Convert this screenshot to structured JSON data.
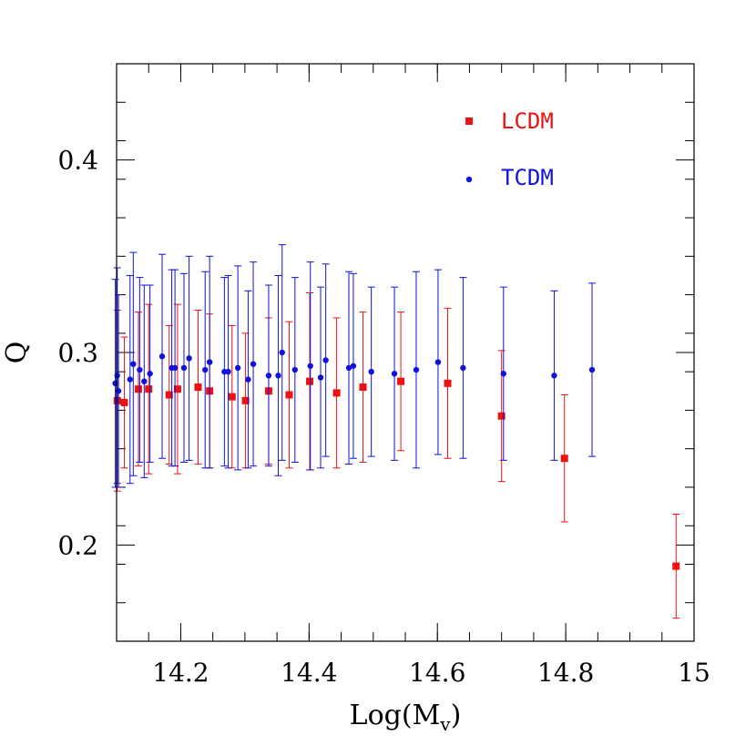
{
  "chart_data": {
    "type": "scatter",
    "xlabel": "Log(M",
    "xlabel_sub": "v",
    "xlabel_close": ")",
    "ylabel": "Q",
    "xlim": [
      14.1,
      15.0
    ],
    "ylim": [
      0.15,
      0.45
    ],
    "x_ticks": [
      14.2,
      14.4,
      14.6,
      14.8,
      15.0
    ],
    "x_tick_labels": [
      "14.2",
      "14.4",
      "14.6",
      "14.8",
      "15"
    ],
    "y_ticks": [
      0.2,
      0.3,
      0.4
    ],
    "y_tick_labels": [
      "0.2",
      "0.3",
      "0.4"
    ],
    "x_minor_step": 0.05,
    "y_minor_step": 0.02,
    "grid": false,
    "legend_position": "top-right",
    "series": [
      {
        "name": "LCDM",
        "color": "#ee1111",
        "marker": "square",
        "points": [
          {
            "x": 14.101,
            "y": 0.275,
            "err": 0.047
          },
          {
            "x": 14.112,
            "y": 0.274,
            "err": 0.034
          },
          {
            "x": 14.134,
            "y": 0.281,
            "err": 0.04
          },
          {
            "x": 14.15,
            "y": 0.281,
            "err": 0.044
          },
          {
            "x": 14.182,
            "y": 0.278,
            "err": 0.036
          },
          {
            "x": 14.195,
            "y": 0.281,
            "err": 0.044
          },
          {
            "x": 14.227,
            "y": 0.282,
            "err": 0.04
          },
          {
            "x": 14.245,
            "y": 0.28,
            "err": 0.04
          },
          {
            "x": 14.28,
            "y": 0.277,
            "err": 0.037
          },
          {
            "x": 14.301,
            "y": 0.275,
            "err": 0.035
          },
          {
            "x": 14.337,
            "y": 0.28,
            "err": 0.038
          },
          {
            "x": 14.369,
            "y": 0.278,
            "err": 0.038
          },
          {
            "x": 14.401,
            "y": 0.285,
            "err": 0.046
          },
          {
            "x": 14.443,
            "y": 0.279,
            "err": 0.039
          },
          {
            "x": 14.484,
            "y": 0.282,
            "err": 0.039
          },
          {
            "x": 14.543,
            "y": 0.285,
            "err": 0.036
          },
          {
            "x": 14.616,
            "y": 0.284,
            "err": 0.039
          },
          {
            "x": 14.7,
            "y": 0.267,
            "err": 0.034
          },
          {
            "x": 14.798,
            "y": 0.245,
            "err": 0.033
          },
          {
            "x": 14.972,
            "y": 0.189,
            "err": 0.027
          }
        ]
      },
      {
        "name": "TCDM",
        "color": "#1111dd",
        "marker": "circle",
        "points": [
          {
            "x": 14.098,
            "y": 0.284,
            "err": 0.054
          },
          {
            "x": 14.101,
            "y": 0.288,
            "err": 0.056
          },
          {
            "x": 14.103,
            "y": 0.28,
            "err": 0.05
          },
          {
            "x": 14.121,
            "y": 0.286,
            "err": 0.054
          },
          {
            "x": 14.126,
            "y": 0.294,
            "err": 0.058
          },
          {
            "x": 14.136,
            "y": 0.291,
            "err": 0.048
          },
          {
            "x": 14.143,
            "y": 0.285,
            "err": 0.05
          },
          {
            "x": 14.152,
            "y": 0.289,
            "err": 0.046
          },
          {
            "x": 14.171,
            "y": 0.298,
            "err": 0.053
          },
          {
            "x": 14.186,
            "y": 0.292,
            "err": 0.051
          },
          {
            "x": 14.191,
            "y": 0.292,
            "err": 0.051
          },
          {
            "x": 14.205,
            "y": 0.292,
            "err": 0.049
          },
          {
            "x": 14.213,
            "y": 0.297,
            "err": 0.053
          },
          {
            "x": 14.238,
            "y": 0.291,
            "err": 0.051
          },
          {
            "x": 14.245,
            "y": 0.295,
            "err": 0.055
          },
          {
            "x": 14.268,
            "y": 0.29,
            "err": 0.049
          },
          {
            "x": 14.274,
            "y": 0.29,
            "err": 0.05
          },
          {
            "x": 14.289,
            "y": 0.292,
            "err": 0.053
          },
          {
            "x": 14.305,
            "y": 0.286,
            "err": 0.046
          },
          {
            "x": 14.313,
            "y": 0.294,
            "err": 0.053
          },
          {
            "x": 14.337,
            "y": 0.288,
            "err": 0.047
          },
          {
            "x": 14.352,
            "y": 0.288,
            "err": 0.052
          },
          {
            "x": 14.358,
            "y": 0.3,
            "err": 0.056
          },
          {
            "x": 14.378,
            "y": 0.291,
            "err": 0.048
          },
          {
            "x": 14.402,
            "y": 0.293,
            "err": 0.054
          },
          {
            "x": 14.418,
            "y": 0.287,
            "err": 0.047
          },
          {
            "x": 14.426,
            "y": 0.296,
            "err": 0.05
          },
          {
            "x": 14.462,
            "y": 0.292,
            "err": 0.05
          },
          {
            "x": 14.469,
            "y": 0.293,
            "err": 0.048
          },
          {
            "x": 14.497,
            "y": 0.29,
            "err": 0.044
          },
          {
            "x": 14.533,
            "y": 0.289,
            "err": 0.045
          },
          {
            "x": 14.567,
            "y": 0.291,
            "err": 0.051
          },
          {
            "x": 14.601,
            "y": 0.295,
            "err": 0.048
          },
          {
            "x": 14.64,
            "y": 0.292,
            "err": 0.047
          },
          {
            "x": 14.703,
            "y": 0.289,
            "err": 0.045
          },
          {
            "x": 14.782,
            "y": 0.288,
            "err": 0.044
          },
          {
            "x": 14.841,
            "y": 0.291,
            "err": 0.045
          }
        ]
      }
    ]
  }
}
